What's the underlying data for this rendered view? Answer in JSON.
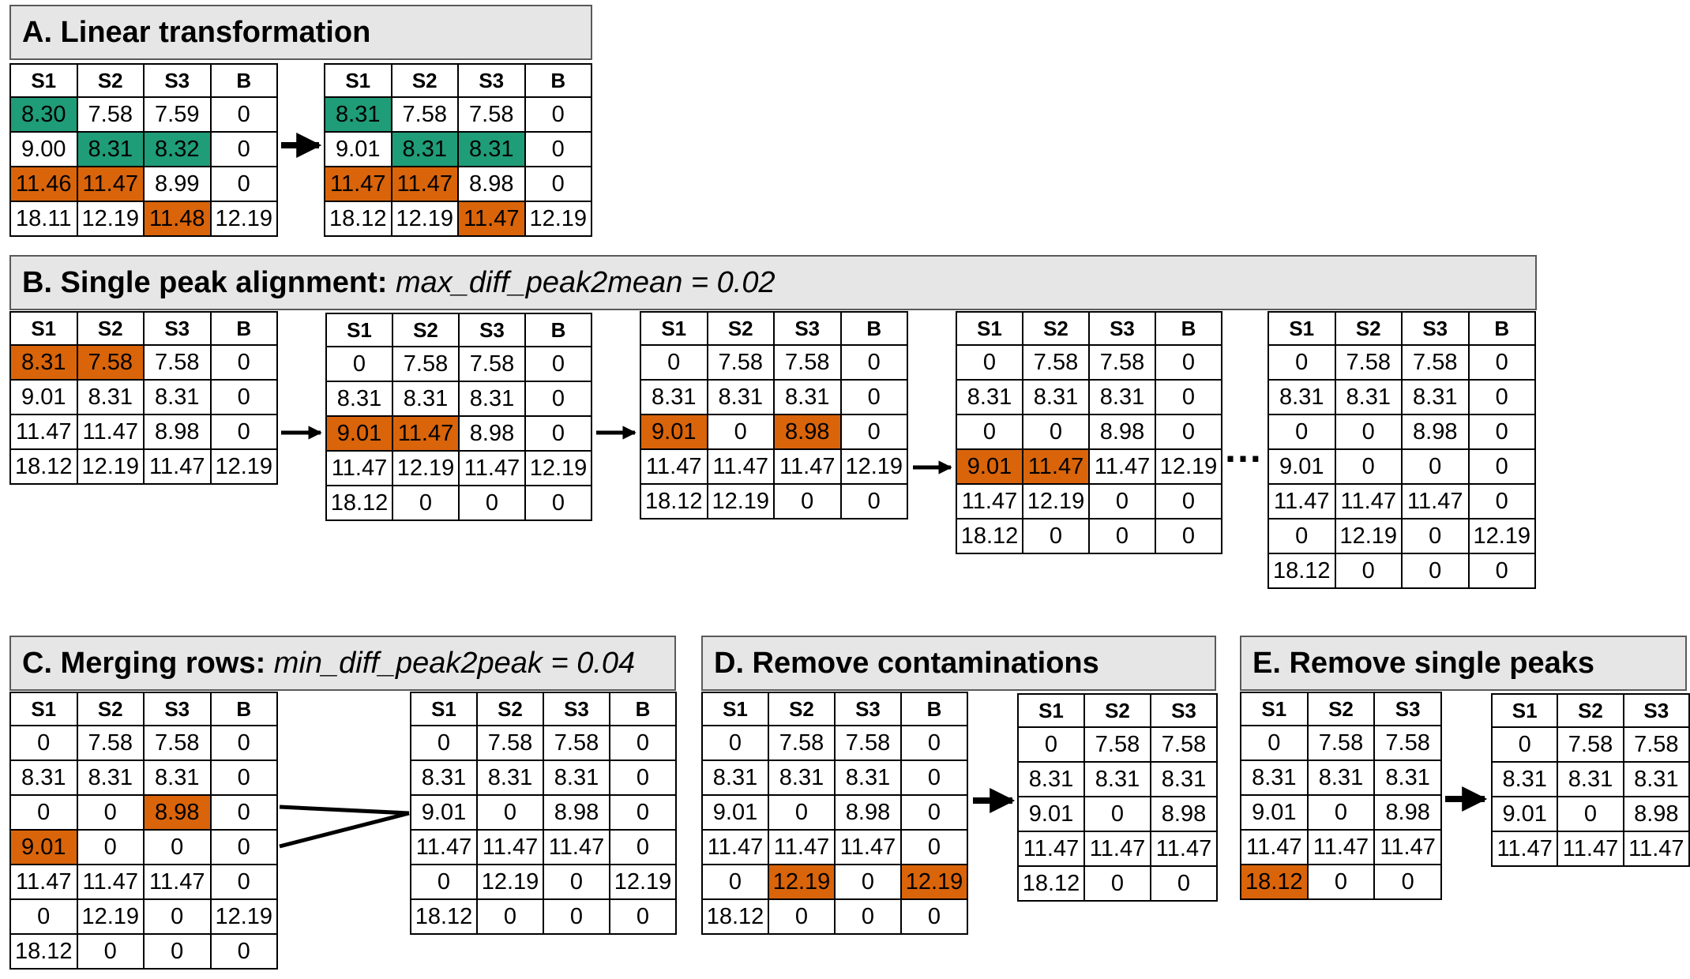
{
  "colors": {
    "green": "#1f9c78",
    "orange": "#d9640a",
    "header_bg": "#e6e6e6"
  },
  "headers": {
    "A": {
      "title": "A. Linear transformation"
    },
    "B": {
      "title": "B. Single peak alignment: ",
      "param": "max_diff_peak2mean = 0.02"
    },
    "C": {
      "title": "C. Merging rows: ",
      "param": "min_diff_peak2peak = 0.04"
    },
    "D": {
      "title": "D. Remove contaminations"
    },
    "E": {
      "title": "E. Remove single peaks"
    }
  },
  "ellipsis": "…",
  "tables": {
    "A1": {
      "cols": [
        "S1",
        "S2",
        "S3",
        "B"
      ],
      "rows": [
        [
          "8.30",
          "7.58",
          "7.59",
          "0"
        ],
        [
          "9.00",
          "8.31",
          "8.32",
          "0"
        ],
        [
          "11.46",
          "11.47",
          "8.99",
          "0"
        ],
        [
          "18.11",
          "12.19",
          "11.48",
          "12.19"
        ]
      ]
    },
    "A2": {
      "cols": [
        "S1",
        "S2",
        "S3",
        "B"
      ],
      "rows": [
        [
          "8.31",
          "7.58",
          "7.58",
          "0"
        ],
        [
          "9.01",
          "8.31",
          "8.31",
          "0"
        ],
        [
          "11.47",
          "11.47",
          "8.98",
          "0"
        ],
        [
          "18.12",
          "12.19",
          "11.47",
          "12.19"
        ]
      ]
    },
    "B1": {
      "cols": [
        "S1",
        "S2",
        "S3",
        "B"
      ],
      "rows": [
        [
          "8.31",
          "7.58",
          "7.58",
          "0"
        ],
        [
          "9.01",
          "8.31",
          "8.31",
          "0"
        ],
        [
          "11.47",
          "11.47",
          "8.98",
          "0"
        ],
        [
          "18.12",
          "12.19",
          "11.47",
          "12.19"
        ]
      ]
    },
    "B2": {
      "cols": [
        "S1",
        "S2",
        "S3",
        "B"
      ],
      "rows": [
        [
          "0",
          "7.58",
          "7.58",
          "0"
        ],
        [
          "8.31",
          "8.31",
          "8.31",
          "0"
        ],
        [
          "9.01",
          "11.47",
          "8.98",
          "0"
        ],
        [
          "11.47",
          "12.19",
          "11.47",
          "12.19"
        ],
        [
          "18.12",
          "0",
          "0",
          "0"
        ]
      ]
    },
    "B3": {
      "cols": [
        "S1",
        "S2",
        "S3",
        "B"
      ],
      "rows": [
        [
          "0",
          "7.58",
          "7.58",
          "0"
        ],
        [
          "8.31",
          "8.31",
          "8.31",
          "0"
        ],
        [
          "9.01",
          "0",
          "8.98",
          "0"
        ],
        [
          "11.47",
          "11.47",
          "11.47",
          "12.19"
        ],
        [
          "18.12",
          "12.19",
          "0",
          "0"
        ]
      ]
    },
    "B4": {
      "cols": [
        "S1",
        "S2",
        "S3",
        "B"
      ],
      "rows": [
        [
          "0",
          "7.58",
          "7.58",
          "0"
        ],
        [
          "8.31",
          "8.31",
          "8.31",
          "0"
        ],
        [
          "0",
          "0",
          "8.98",
          "0"
        ],
        [
          "9.01",
          "11.47",
          "11.47",
          "12.19"
        ],
        [
          "11.47",
          "12.19",
          "0",
          "0"
        ],
        [
          "18.12",
          "0",
          "0",
          "0"
        ]
      ]
    },
    "B5": {
      "cols": [
        "S1",
        "S2",
        "S3",
        "B"
      ],
      "rows": [
        [
          "0",
          "7.58",
          "7.58",
          "0"
        ],
        [
          "8.31",
          "8.31",
          "8.31",
          "0"
        ],
        [
          "0",
          "0",
          "8.98",
          "0"
        ],
        [
          "9.01",
          "0",
          "0",
          "0"
        ],
        [
          "11.47",
          "11.47",
          "11.47",
          "0"
        ],
        [
          "0",
          "12.19",
          "0",
          "12.19"
        ],
        [
          "18.12",
          "0",
          "0",
          "0"
        ]
      ]
    },
    "C1": {
      "cols": [
        "S1",
        "S2",
        "S3",
        "B"
      ],
      "rows": [
        [
          "0",
          "7.58",
          "7.58",
          "0"
        ],
        [
          "8.31",
          "8.31",
          "8.31",
          "0"
        ],
        [
          "0",
          "0",
          "8.98",
          "0"
        ],
        [
          "9.01",
          "0",
          "0",
          "0"
        ],
        [
          "11.47",
          "11.47",
          "11.47",
          "0"
        ],
        [
          "0",
          "12.19",
          "0",
          "12.19"
        ],
        [
          "18.12",
          "0",
          "0",
          "0"
        ]
      ]
    },
    "C2": {
      "cols": [
        "S1",
        "S2",
        "S3",
        "B"
      ],
      "rows": [
        [
          "0",
          "7.58",
          "7.58",
          "0"
        ],
        [
          "8.31",
          "8.31",
          "8.31",
          "0"
        ],
        [
          "9.01",
          "0",
          "8.98",
          "0"
        ],
        [
          "11.47",
          "11.47",
          "11.47",
          "0"
        ],
        [
          "0",
          "12.19",
          "0",
          "12.19"
        ],
        [
          "18.12",
          "0",
          "0",
          "0"
        ]
      ]
    },
    "D1": {
      "cols": [
        "S1",
        "S2",
        "S3",
        "B"
      ],
      "rows": [
        [
          "0",
          "7.58",
          "7.58",
          "0"
        ],
        [
          "8.31",
          "8.31",
          "8.31",
          "0"
        ],
        [
          "9.01",
          "0",
          "8.98",
          "0"
        ],
        [
          "11.47",
          "11.47",
          "11.47",
          "0"
        ],
        [
          "0",
          "12.19",
          "0",
          "12.19"
        ],
        [
          "18.12",
          "0",
          "0",
          "0"
        ]
      ]
    },
    "D2": {
      "cols": [
        "S1",
        "S2",
        "S3"
      ],
      "rows": [
        [
          "0",
          "7.58",
          "7.58"
        ],
        [
          "8.31",
          "8.31",
          "8.31"
        ],
        [
          "9.01",
          "0",
          "8.98"
        ],
        [
          "11.47",
          "11.47",
          "11.47"
        ],
        [
          "18.12",
          "0",
          "0"
        ]
      ]
    },
    "E1": {
      "cols": [
        "S1",
        "S2",
        "S3"
      ],
      "rows": [
        [
          "0",
          "7.58",
          "7.58"
        ],
        [
          "8.31",
          "8.31",
          "8.31"
        ],
        [
          "9.01",
          "0",
          "8.98"
        ],
        [
          "11.47",
          "11.47",
          "11.47"
        ],
        [
          "18.12",
          "0",
          "0"
        ]
      ]
    },
    "E2": {
      "cols": [
        "S1",
        "S2",
        "S3"
      ],
      "rows": [
        [
          "0",
          "7.58",
          "7.58"
        ],
        [
          "8.31",
          "8.31",
          "8.31"
        ],
        [
          "9.01",
          "0",
          "8.98"
        ],
        [
          "11.47",
          "11.47",
          "11.47"
        ]
      ]
    }
  },
  "highlights": {
    "A1": {
      "green": [
        [
          0,
          0
        ],
        [
          1,
          1
        ],
        [
          1,
          2
        ]
      ],
      "orange": [
        [
          2,
          0
        ],
        [
          2,
          1
        ],
        [
          3,
          2
        ]
      ]
    },
    "A2": {
      "green": [
        [
          0,
          0
        ],
        [
          1,
          1
        ],
        [
          1,
          2
        ]
      ],
      "orange": [
        [
          2,
          0
        ],
        [
          2,
          1
        ],
        [
          3,
          2
        ]
      ]
    },
    "B1": {
      "orange": [
        [
          0,
          0
        ],
        [
          0,
          1
        ]
      ]
    },
    "B2": {
      "orange": [
        [
          2,
          0
        ],
        [
          2,
          1
        ]
      ]
    },
    "B3": {
      "orange": [
        [
          2,
          0
        ],
        [
          2,
          2
        ]
      ]
    },
    "B4": {
      "orange": [
        [
          3,
          0
        ],
        [
          3,
          1
        ]
      ]
    },
    "C1": {
      "orange": [
        [
          2,
          2
        ],
        [
          3,
          0
        ]
      ]
    },
    "D1": {
      "orange": [
        [
          4,
          1
        ],
        [
          4,
          3
        ]
      ]
    },
    "E1": {
      "orange": [
        [
          4,
          0
        ]
      ]
    }
  }
}
